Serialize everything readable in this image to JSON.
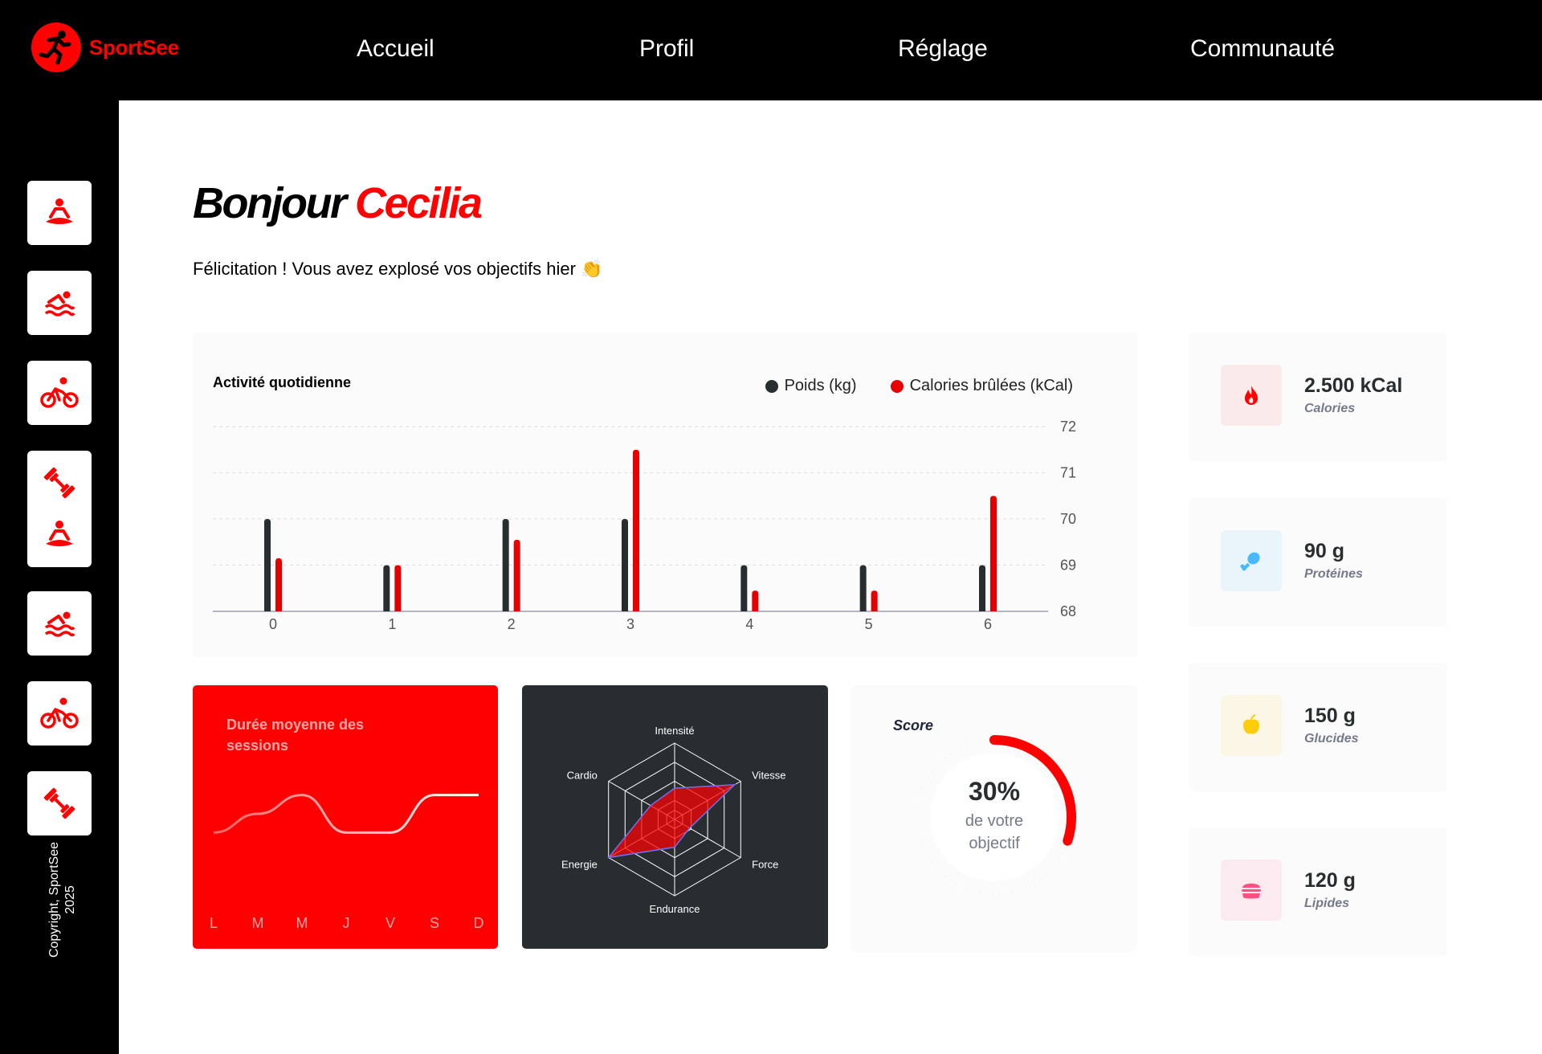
{
  "brand": {
    "name": "SportSee",
    "accent": "#ff0101"
  },
  "nav": {
    "items": [
      "Accueil",
      "Profil",
      "Réglage",
      "Communauté"
    ]
  },
  "sidebar": {
    "icons": [
      "meditation-icon",
      "swimming-icon",
      "cycling-icon",
      "dumbbell-icon",
      "meditation-icon",
      "swimming-icon",
      "cycling-icon",
      "dumbbell-icon"
    ],
    "copyright": "Copyright, SportSee 2025"
  },
  "greeting": {
    "prefix": "Bonjour",
    "name": "Cecilia",
    "message": "Félicitation ! Vous avez explosé vos objectifs hier 👏"
  },
  "activity": {
    "title": "Activité quotidienne",
    "legend": [
      "Poids (kg)",
      "Calories brûlées (kCal)"
    ],
    "colors": [
      "#282d30",
      "#e60000"
    ]
  },
  "duration": {
    "title": "Durée moyenne des sessions"
  },
  "radar": {
    "labels": [
      "Intensité",
      "Vitesse",
      "Force",
      "Endurance",
      "Energie",
      "Cardio"
    ]
  },
  "score": {
    "title": "Score",
    "value": "30%",
    "caption": "de votre objectif"
  },
  "key_data": [
    {
      "value": "2.500 kCal",
      "label": "Calories",
      "icon": "calories-icon",
      "bg": "#fbeaea",
      "color": "#ff0000"
    },
    {
      "value": "90 g",
      "label": "Protéines",
      "icon": "protein-icon",
      "bg": "#e9f4fb",
      "color": "#4ab8ff"
    },
    {
      "value": "150 g",
      "label": "Glucides",
      "icon": "carbs-icon",
      "bg": "#fbf6e5",
      "color": "#fdcc0c"
    },
    {
      "value": "120 g",
      "label": "Lipides",
      "icon": "lipids-icon",
      "bg": "#fbeaef",
      "color": "#fd5181"
    }
  ],
  "chart_data": [
    {
      "type": "bar",
      "title": "Activité quotidienne",
      "categories": [
        "0",
        "1",
        "2",
        "3",
        "4",
        "5",
        "6"
      ],
      "series": [
        {
          "name": "Poids (kg)",
          "values": [
            70,
            69,
            70,
            70,
            69,
            69,
            69
          ]
        },
        {
          "name": "Calories brûlées (kCal)",
          "values": [
            69.15,
            69,
            69.55,
            71.5,
            68.45,
            68.45,
            70.5
          ]
        }
      ],
      "ylim": [
        68,
        72
      ],
      "yticks": [
        68,
        69,
        70,
        71,
        72
      ],
      "y_axis_side": "right",
      "grid": true,
      "legend": "top-right"
    },
    {
      "type": "line",
      "title": "Durée moyenne des sessions",
      "categories": [
        "L",
        "M",
        "M",
        "J",
        "V",
        "S",
        "D"
      ],
      "values": [
        30,
        40,
        50,
        30,
        30,
        50,
        50
      ]
    },
    {
      "type": "radar",
      "categories": [
        "Intensité",
        "Vitesse",
        "Force",
        "Endurance",
        "Energie",
        "Cardio"
      ],
      "values": [
        90,
        200,
        50,
        80,
        220,
        80
      ],
      "max": 220
    },
    {
      "type": "radial",
      "title": "Score",
      "value": 0.3
    }
  ]
}
